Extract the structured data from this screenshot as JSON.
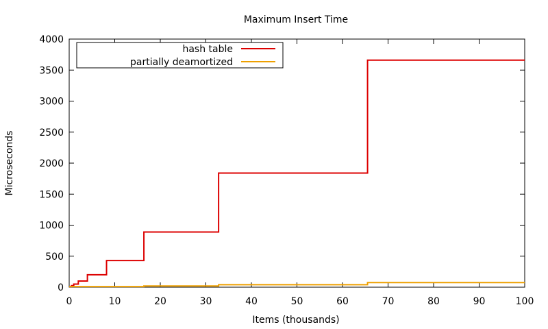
{
  "chart_data": {
    "type": "line",
    "step": true,
    "title": "Maximum Insert Time",
    "xlabel": "Items (thousands)",
    "ylabel": "Microseconds",
    "xlim": [
      0,
      100
    ],
    "ylim": [
      0,
      4000
    ],
    "xticks": [
      0,
      10,
      20,
      30,
      40,
      50,
      60,
      70,
      80,
      90,
      100
    ],
    "yticks": [
      0,
      500,
      1000,
      1500,
      2000,
      2500,
      3000,
      3500,
      4000
    ],
    "grid": false,
    "legend_position": "top-left",
    "series": [
      {
        "name": "hash table",
        "color": "#dd0000",
        "x": [
          0,
          0.5,
          1,
          2,
          4,
          8.2,
          16.4,
          32.8,
          65.5,
          100
        ],
        "y": [
          10,
          25,
          50,
          100,
          200,
          430,
          890,
          1840,
          3660,
          3660
        ]
      },
      {
        "name": "partially deamortized",
        "color": "#eea000",
        "x": [
          0,
          16.4,
          32.8,
          65.5,
          100
        ],
        "y": [
          10,
          20,
          40,
          75,
          75
        ]
      }
    ]
  }
}
